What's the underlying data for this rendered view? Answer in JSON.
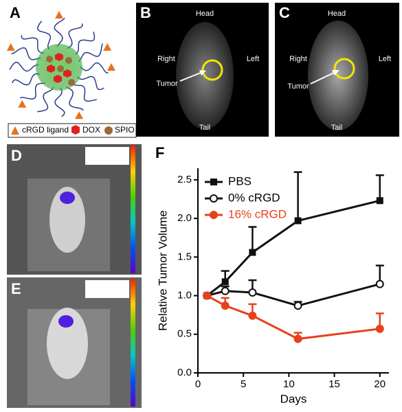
{
  "figure": {
    "panel_labels": [
      "A",
      "B",
      "C",
      "D",
      "E",
      "F"
    ],
    "a_legend": [
      "cRGD ligand",
      "DOX",
      "SPIO"
    ],
    "b_labels": {
      "head": "Head",
      "right": "Right",
      "left": "Left",
      "tumor": "Tumor",
      "tail": "Tail"
    },
    "c_labels": {
      "head": "Head",
      "right": "Right",
      "left": "Left",
      "tumor": "Tumor",
      "tail": "Tail"
    }
  },
  "chart_data": {
    "type": "line",
    "xlabel": "Days",
    "ylabel": "Relative Tumor Volume",
    "xlim": [
      0,
      21
    ],
    "xticks": [
      0,
      5,
      10,
      15,
      20
    ],
    "ylim": [
      0,
      2.65
    ],
    "yticks": [
      {
        "value": 0,
        "label": "0.0"
      },
      {
        "value": 0.5,
        "label": "0.5"
      },
      {
        "value": 1,
        "label": "1.0"
      },
      {
        "value": 1.5,
        "label": "1.5"
      },
      {
        "value": 2,
        "label": "2.0"
      },
      {
        "value": 2.5,
        "label": "2.5"
      }
    ],
    "legend": "upper left",
    "series": [
      {
        "name": "PBS",
        "color": "#111111",
        "marker": "square",
        "x": [
          1,
          3,
          6,
          11,
          20
        ],
        "values": [
          1.0,
          1.18,
          1.56,
          1.97,
          2.23
        ],
        "errors": [
          0,
          0.14,
          0.33,
          0.63,
          0.33
        ]
      },
      {
        "name": "0% cRGD",
        "color": "#111111",
        "marker": "open-circle",
        "x": [
          1,
          3,
          6,
          11,
          20
        ],
        "values": [
          1.0,
          1.06,
          1.04,
          0.87,
          1.15
        ],
        "errors": [
          0,
          0.06,
          0.16,
          0.05,
          0.24
        ]
      },
      {
        "name": "16% cRGD",
        "color": "#e8401c",
        "marker": "circle",
        "x": [
          1,
          3,
          6,
          11,
          20
        ],
        "values": [
          1.0,
          0.87,
          0.74,
          0.44,
          0.57
        ],
        "errors": [
          0,
          0.1,
          0.15,
          0.08,
          0.2
        ]
      }
    ]
  }
}
